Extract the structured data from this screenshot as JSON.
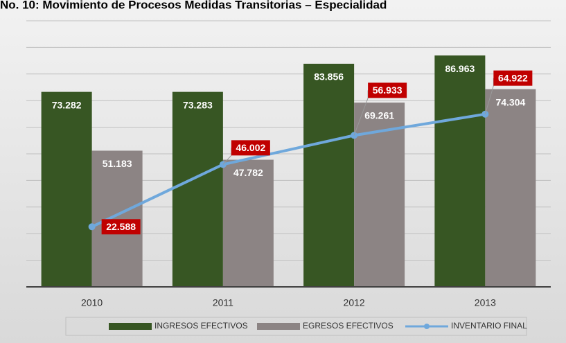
{
  "chart_data": {
    "type": "bar",
    "title": "No. 10: Movimiento de Procesos Medidas Transitorias – Especialidad",
    "categories": [
      "2010",
      "2011",
      "2012",
      "2013"
    ],
    "series": [
      {
        "name": "INGRESOS EFECTIVOS",
        "color": "#375623",
        "values": [
          73282,
          73283,
          83856,
          86963
        ],
        "value_labels": [
          "73.282",
          "73.283",
          "83.856",
          "86.963"
        ]
      },
      {
        "name": "EGRESOS EFECTIVOS",
        "color": "#8c8484",
        "values": [
          51183,
          47782,
          69261,
          74304
        ],
        "value_labels": [
          "51.183",
          "47.782",
          "69.261",
          "74.304"
        ]
      },
      {
        "name": "INVENTARIO FINAL",
        "type": "line",
        "color": "#6fa8dc",
        "values": [
          22588,
          46002,
          56933,
          64922
        ],
        "value_labels": [
          "22.588",
          "46.002",
          "56.933",
          "64.922"
        ],
        "label_color": "#c00000"
      }
    ],
    "ylim": [
      0,
      100000
    ],
    "yticks": [
      0,
      10000,
      20000,
      30000,
      40000,
      50000,
      60000,
      70000,
      80000,
      90000,
      100000
    ],
    "grid": true,
    "legend": "bottom"
  }
}
